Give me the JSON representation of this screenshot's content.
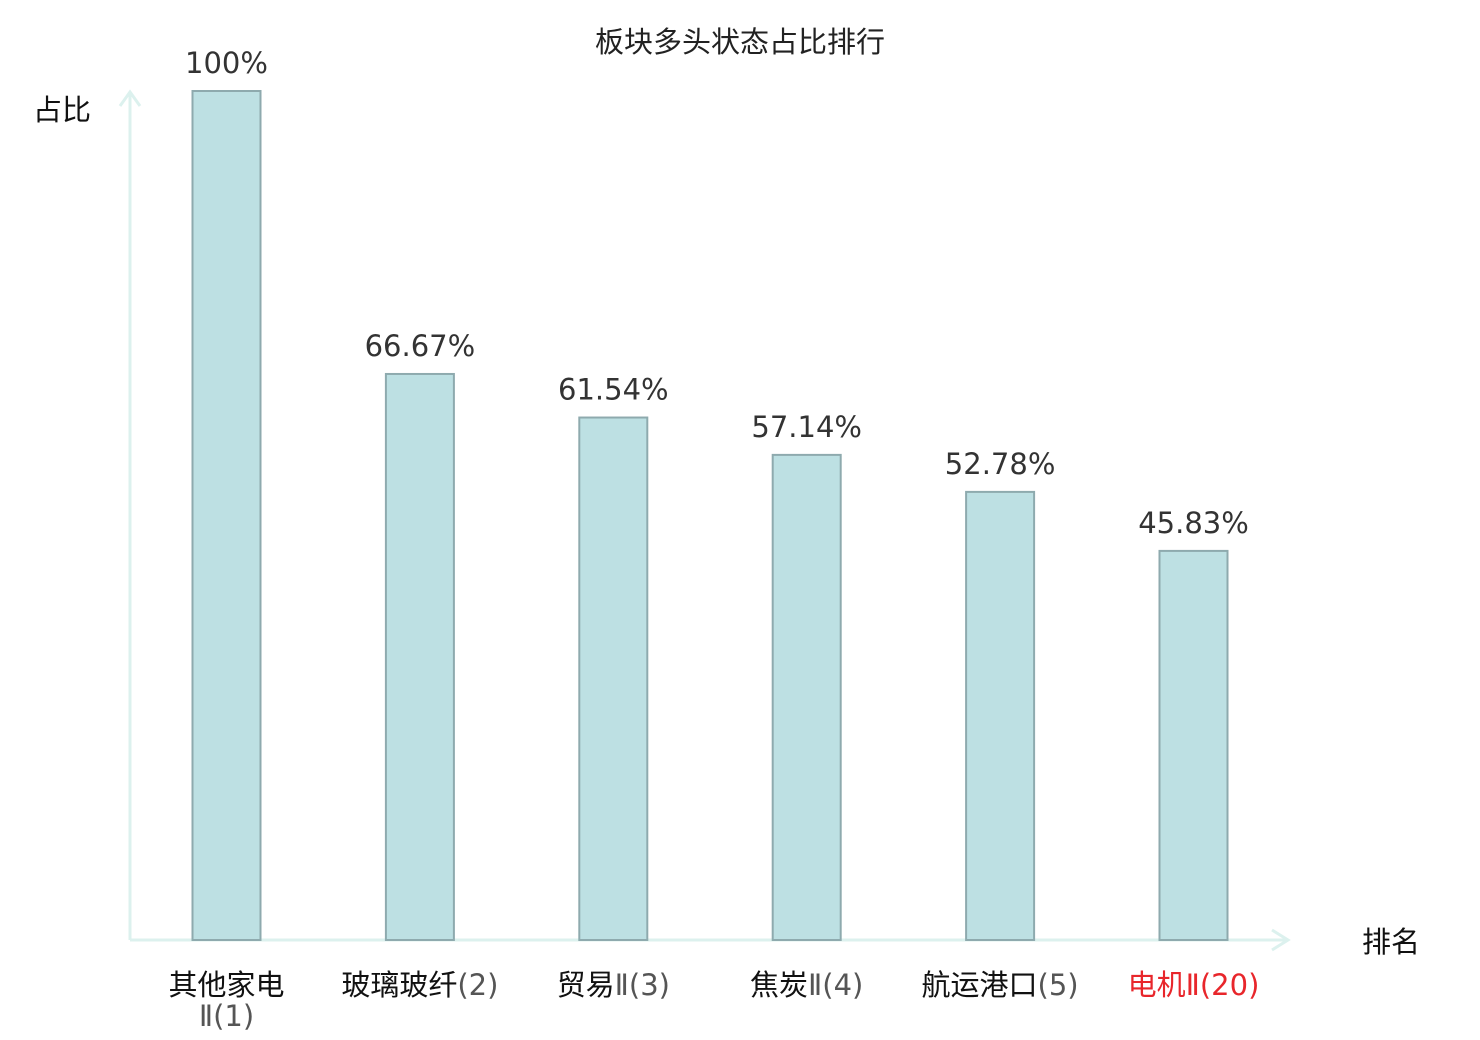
{
  "chart_data": {
    "type": "bar",
    "title": "板块多头状态占比排行",
    "ylabel": "占比",
    "xlabel": "排名",
    "ylim": [
      0,
      100
    ],
    "grid": false,
    "legend": "none",
    "categories": [
      {
        "name": "其他家电",
        "suffix": "Ⅱ",
        "rank": "(1)",
        "highlight": false
      },
      {
        "name": "玻璃玻纤",
        "suffix": "",
        "rank": "(2)",
        "highlight": false
      },
      {
        "name": "贸易",
        "suffix": "Ⅱ",
        "rank": "(3)",
        "highlight": false
      },
      {
        "name": "焦炭",
        "suffix": "Ⅱ",
        "rank": "(4)",
        "highlight": false
      },
      {
        "name": "航运港口",
        "suffix": "",
        "rank": "(5)",
        "highlight": false
      },
      {
        "name": "电机",
        "suffix": "Ⅱ",
        "rank": "(20)",
        "highlight": true
      }
    ],
    "values": [
      100,
      66.67,
      61.54,
      57.14,
      52.78,
      45.83
    ],
    "value_labels": [
      "100%",
      "66.67%",
      "61.54%",
      "57.14%",
      "52.78%",
      "45.83%"
    ],
    "colors": {
      "bar_fill": "#bde0e3",
      "bar_stroke": "#8eaaae",
      "axis": "#dcf1ee",
      "highlight_text": "#e8262b"
    }
  }
}
